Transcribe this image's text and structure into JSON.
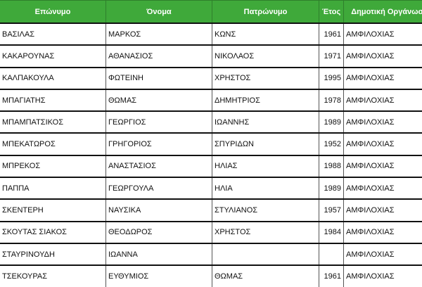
{
  "table": {
    "columns": [
      "Επώνυμο",
      "Όνομα",
      "Πατρώνυμο",
      "Έτος",
      "Δημοτική Οργάνωση"
    ],
    "rows": [
      [
        "ΒΑΣΙΛΑΣ",
        "ΜΑΡΚΟΣ",
        "ΚΩΝΣ",
        1961,
        "ΑΜΦΙΛΟΧΙΑΣ"
      ],
      [
        "ΚΑΚΑΡΟΥΝΑΣ",
        "ΑΘΑΝΑΣΙΟΣ",
        "ΝΙΚΟΛΑΟΣ",
        1971,
        "ΑΜΦΙΛΟΧΙΑΣ"
      ],
      [
        "ΚΑΛΠΑΚΟΥΛΑ",
        "ΦΩΤΕΙΝΗ",
        "ΧΡΗΣΤΟΣ",
        1995,
        "ΑΜΦΙΛΟΧΙΑΣ"
      ],
      [
        "ΜΠΑΓΙΑΤΗΣ",
        "ΘΩΜΑΣ",
        "ΔΗΜΗΤΡΙΟΣ",
        1978,
        "ΑΜΦΙΛΟΧΙΑΣ"
      ],
      [
        "ΜΠΑΜΠΑΤΣΙΚΟΣ",
        "ΓΕΩΡΓΙΟΣ",
        "ΙΩΑΝΝΗΣ",
        1989,
        "ΑΜΦΙΛΟΧΙΑΣ"
      ],
      [
        "ΜΠΕΚΑΤΩΡΟΣ",
        "ΓΡΗΓΟΡΙΟΣ",
        "ΣΠΥΡΙΔΩΝ",
        1952,
        "ΑΜΦΙΛΟΧΙΑΣ"
      ],
      [
        "ΜΠΡΕΚΟΣ",
        "ΑΝΑΣΤΑΣΙΟΣ",
        "ΗΛΙΑΣ",
        1988,
        "ΑΜΦΙΛΟΧΙΑΣ"
      ],
      [
        "ΠΑΠΠΑ",
        "ΓΕΩΡΓΟΥΛΑ",
        "ΗΛΙΑ",
        1989,
        "ΑΜΦΙΛΟΧΙΑΣ"
      ],
      [
        "ΣΚΕΝΤΕΡΗ",
        "ΝΑΥΣΙΚΑ",
        "ΣΤΥΛΙΑΝΟΣ",
        1957,
        "ΑΜΦΙΛΟΧΙΑΣ"
      ],
      [
        "ΣΚΟΥΤΑΣ ΣΙΑΚΟΣ",
        "ΘΕΟΔΩΡΟΣ",
        "ΧΡΗΣΤΟΣ",
        1984,
        "ΑΜΦΙΛΟΧΙΑΣ"
      ],
      [
        "ΣΤΑΥΡΙΝΟΥΔΗ",
        "ΙΩΑΝΝΑ",
        null,
        null,
        "ΑΜΦΙΛΟΧΙΑΣ"
      ],
      [
        "ΤΣΕΚΟΥΡΑΣ",
        "ΕΥΘΥΜΙΟΣ",
        "ΘΩΜΑΣ",
        1961,
        "ΑΜΦΙΛΟΧΙΑΣ"
      ]
    ]
  }
}
